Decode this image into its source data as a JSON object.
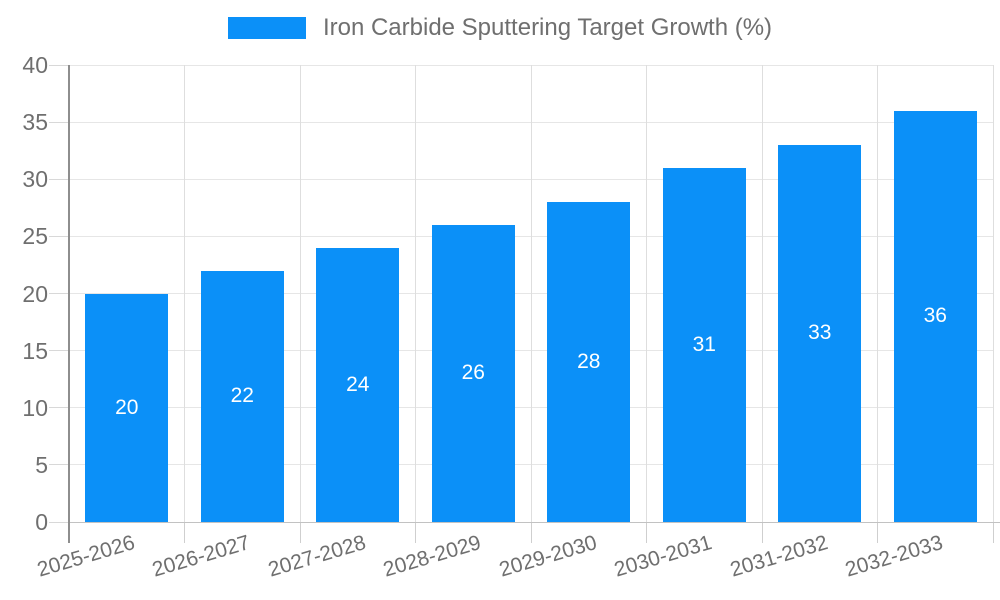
{
  "legend": {
    "label": "Iron Carbide Sputtering Target Growth (%)"
  },
  "chart_data": {
    "type": "bar",
    "title": "Iron Carbide Sputtering Target Growth (%)",
    "categories": [
      "2025-2026",
      "2026-2027",
      "2027-2028",
      "2028-2029",
      "2029-2030",
      "2030-2031",
      "2031-2032",
      "2032-2033"
    ],
    "series": [
      {
        "name": "Iron Carbide Sputtering Target Growth (%)",
        "values": [
          20,
          22,
          24,
          26,
          28,
          31,
          33,
          36
        ]
      }
    ],
    "values": [
      20,
      22,
      24,
      26,
      28,
      31,
      33,
      36
    ],
    "bar_labels": [
      "20",
      "22",
      "24",
      "26",
      "28",
      "31",
      "33",
      "36"
    ],
    "xlabel": "",
    "ylabel": "",
    "ylim": [
      0,
      40
    ],
    "yticks": [
      0,
      5,
      10,
      15,
      20,
      25,
      30,
      35,
      40
    ],
    "grid": true,
    "legend_position": "top-center",
    "x_label_rotation_deg": -16.5,
    "colors": {
      "bar": "#0b90f8",
      "bar_value_text": "#ffffff",
      "axis_text": "#6f6f6f",
      "gridline": "#e6e6e6"
    }
  }
}
